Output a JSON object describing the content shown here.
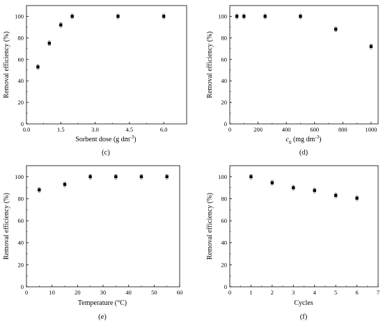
{
  "chart_data": [
    {
      "panel": "(c)",
      "type": "scatter",
      "xlabel": "Sorbent dose (g dm",
      "xlabel_sup": "-3",
      "xlabel_end": ")",
      "ylabel": "Removal efficiency (%)",
      "xlim": [
        0,
        7
      ],
      "ylim": [
        0,
        110
      ],
      "xticks": [
        0,
        1.5,
        3,
        4.5,
        6
      ],
      "xtick_labels": [
        "0.0",
        "1.5",
        "3.0",
        "4.5",
        "6.0"
      ],
      "yticks": [
        0,
        20,
        40,
        60,
        80,
        100
      ],
      "ytick_labels": [
        "0",
        "20",
        "40",
        "60",
        "80",
        "100"
      ],
      "x": [
        0.5,
        1.0,
        1.5,
        2.0,
        4.0,
        6.0
      ],
      "y": [
        53,
        75,
        92,
        100,
        100,
        100
      ]
    },
    {
      "panel": "(d)",
      "type": "scatter",
      "xlabel": "c",
      "xlabel_sub": "0",
      "xlabel_end": " (mg dm",
      "xlabel_sup": "-3",
      "xlabel_end2": ")",
      "ylabel": "Removal efficiency (%)",
      "xlim": [
        0,
        1050
      ],
      "ylim": [
        0,
        110
      ],
      "xticks": [
        0,
        200,
        400,
        600,
        800,
        1000
      ],
      "xtick_labels": [
        "0",
        "200",
        "400",
        "600",
        "800",
        "1000"
      ],
      "yticks": [
        0,
        20,
        40,
        60,
        80,
        100
      ],
      "ytick_labels": [
        "0",
        "20",
        "40",
        "60",
        "80",
        "100"
      ],
      "x": [
        50,
        100,
        250,
        500,
        750,
        1000
      ],
      "y": [
        100,
        100,
        100,
        100,
        88,
        72
      ]
    },
    {
      "panel": "(e)",
      "type": "scatter",
      "xlabel": "Temperature (°C)",
      "ylabel": "Removal efficiency (%)",
      "xlim": [
        0,
        60
      ],
      "ylim": [
        0,
        110
      ],
      "xticks": [
        0,
        10,
        20,
        30,
        40,
        50,
        60
      ],
      "xtick_labels": [
        "0",
        "10",
        "20",
        "30",
        "40",
        "50",
        "60"
      ],
      "yticks": [
        0,
        20,
        40,
        60,
        80,
        100
      ],
      "ytick_labels": [
        "0",
        "20",
        "40",
        "60",
        "80",
        "100"
      ],
      "x": [
        5,
        15,
        25,
        35,
        45,
        55
      ],
      "y": [
        88,
        93,
        100,
        100,
        100,
        100
      ]
    },
    {
      "panel": "(f)",
      "type": "scatter",
      "xlabel": "Cycles",
      "ylabel": "Removal efficiency (%)",
      "xlim": [
        0,
        7
      ],
      "ylim": [
        0,
        110
      ],
      "xticks": [
        0,
        1,
        2,
        3,
        4,
        5,
        6,
        7
      ],
      "xtick_labels": [
        "0",
        "1",
        "2",
        "3",
        "4",
        "5",
        "6",
        "7"
      ],
      "yticks": [
        0,
        20,
        40,
        60,
        80,
        100
      ],
      "ytick_labels": [
        "0",
        "20",
        "40",
        "60",
        "80",
        "100"
      ],
      "x": [
        1,
        2,
        3,
        4,
        5,
        6
      ],
      "y": [
        100,
        94.5,
        90,
        87.5,
        83,
        80.5
      ]
    }
  ]
}
